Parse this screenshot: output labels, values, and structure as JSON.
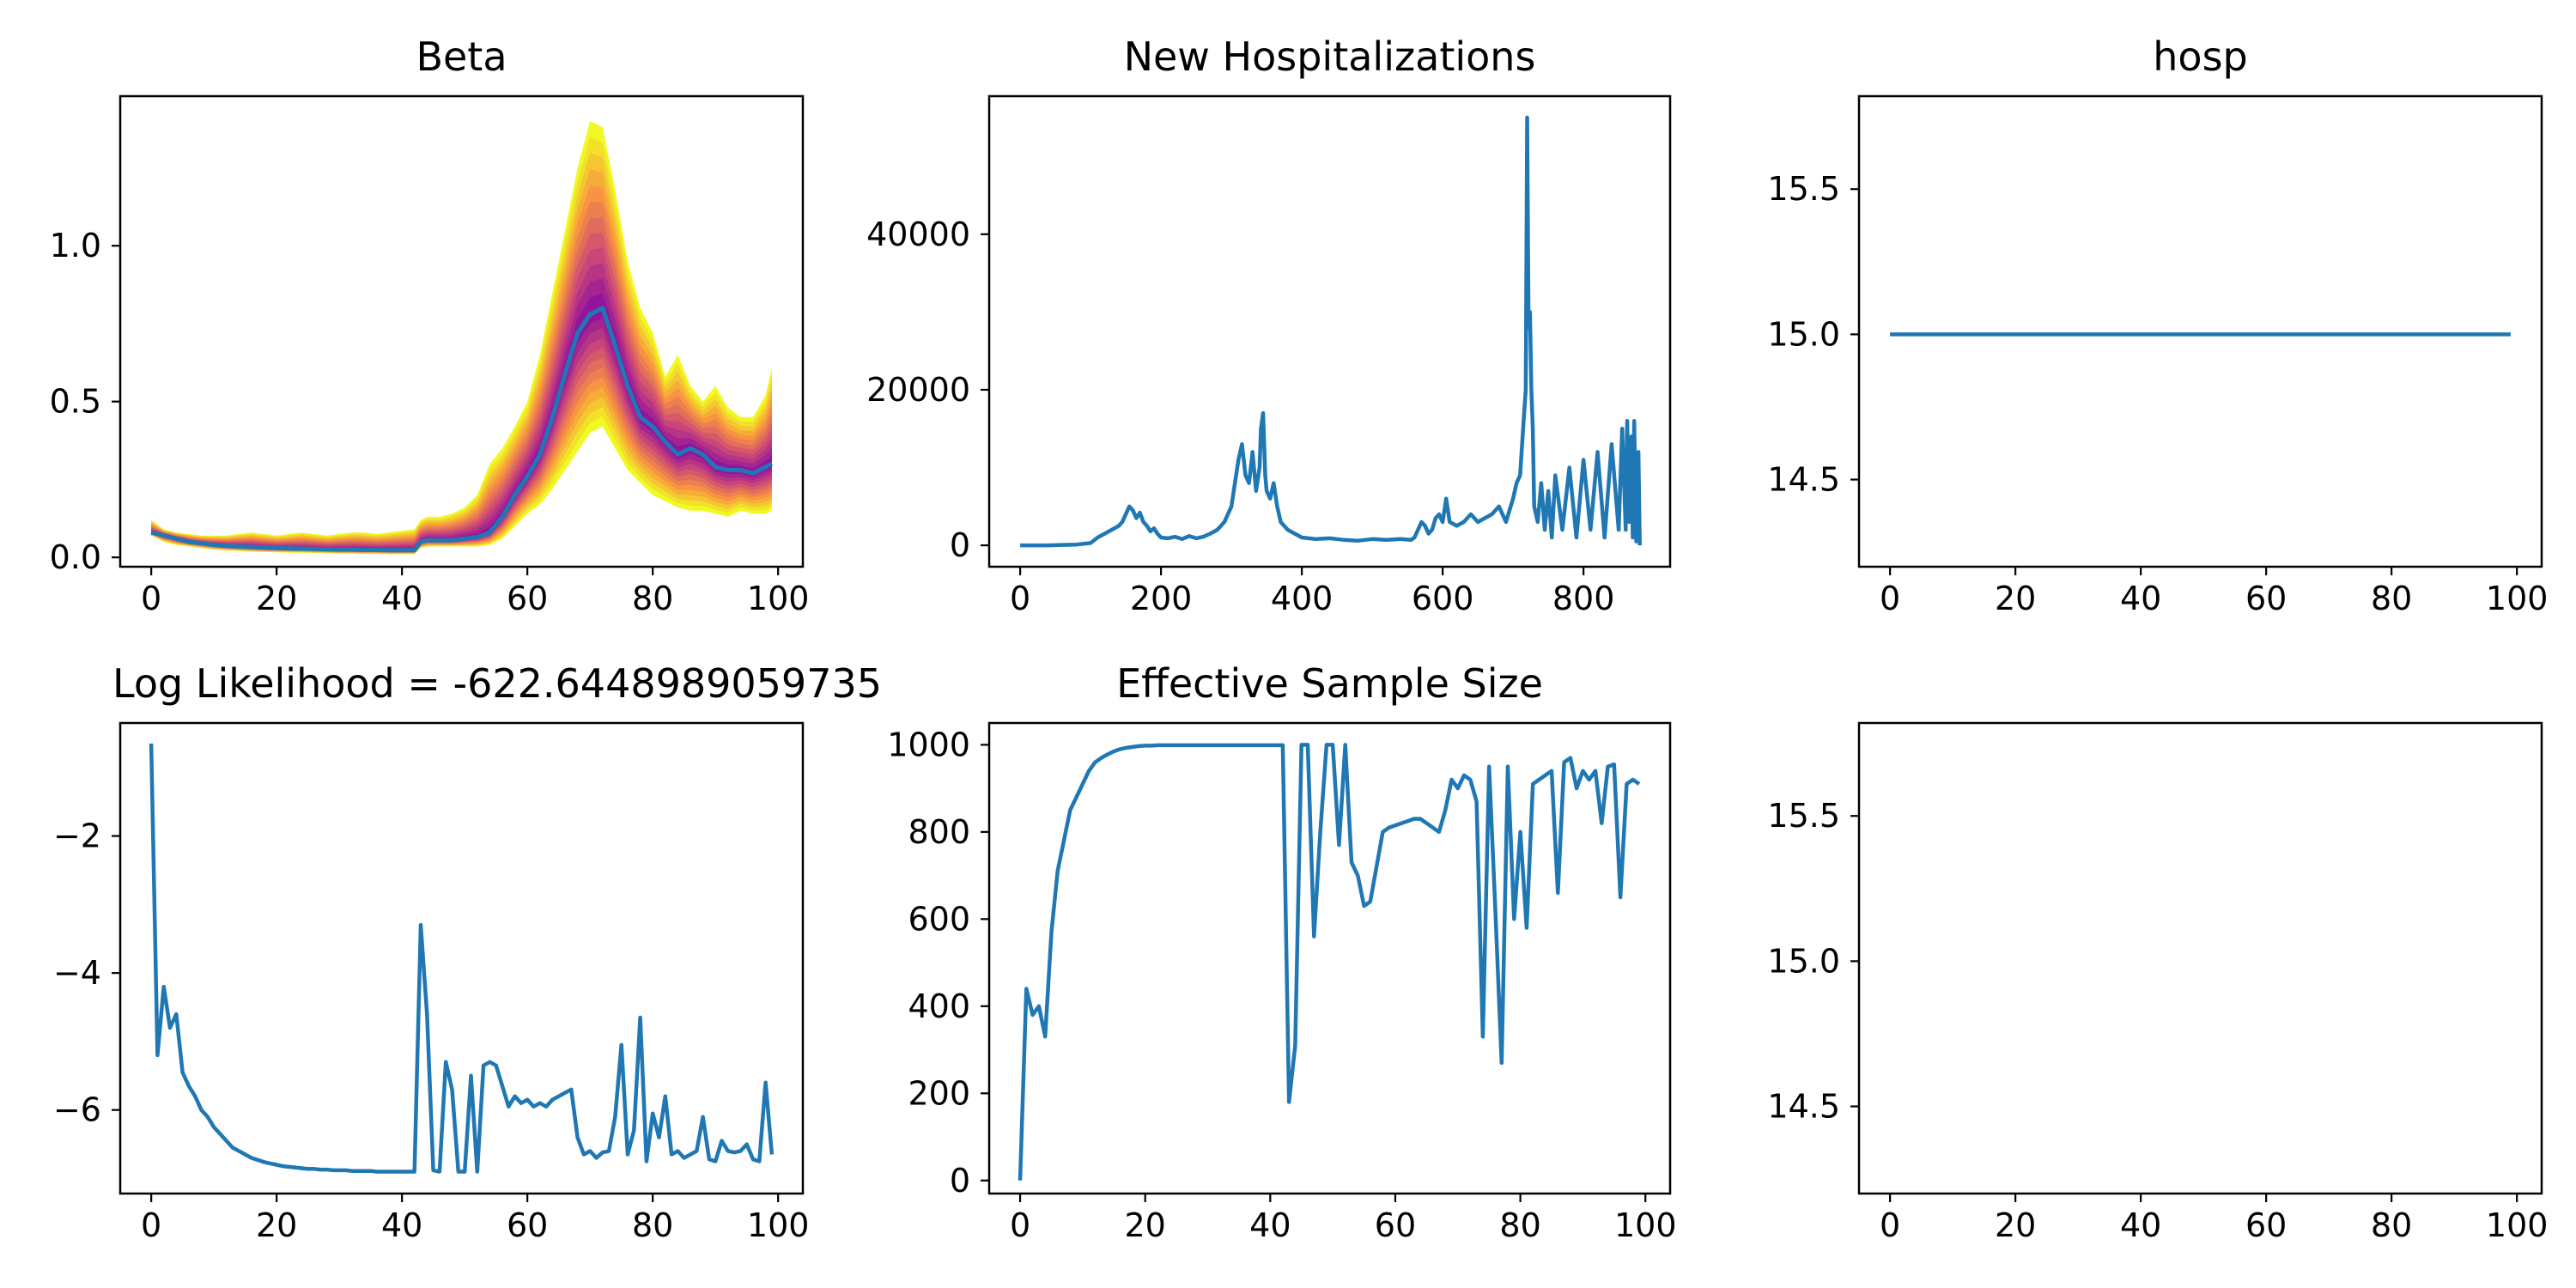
{
  "colors": {
    "line": "#1f77b4",
    "band_outer": "#f0f921",
    "band_mid": "#f89540",
    "band_inner": "#cc4778",
    "band_core": "#7e03a8",
    "frame": "#000000"
  },
  "chart_data": [
    {
      "id": "beta",
      "type": "line",
      "title": "Beta",
      "xlabel": "",
      "ylabel": "",
      "xlim": [
        -4.95,
        103.95
      ],
      "ylim": [
        -0.03,
        1.48
      ],
      "xticks": [
        0,
        20,
        40,
        60,
        80,
        100
      ],
      "xtick_labels": [
        "0",
        "20",
        "40",
        "60",
        "80",
        "100"
      ],
      "yticks": [
        0.0,
        0.5,
        1.0
      ],
      "ytick_labels": [
        "0.0",
        "0.5",
        "1.0"
      ],
      "grid": false,
      "has_band": true,
      "band_colormap": "plasma",
      "x": [
        0,
        2,
        4,
        6,
        8,
        10,
        12,
        14,
        16,
        18,
        20,
        22,
        24,
        26,
        28,
        30,
        32,
        34,
        36,
        38,
        40,
        42,
        43,
        44,
        46,
        48,
        50,
        52,
        54,
        56,
        58,
        60,
        62,
        64,
        66,
        68,
        70,
        72,
        74,
        76,
        78,
        80,
        82,
        84,
        86,
        88,
        90,
        92,
        94,
        96,
        98,
        99
      ],
      "median": [
        0.08,
        0.07,
        0.06,
        0.05,
        0.045,
        0.04,
        0.037,
        0.035,
        0.033,
        0.031,
        0.03,
        0.029,
        0.028,
        0.027,
        0.026,
        0.025,
        0.025,
        0.024,
        0.024,
        0.023,
        0.023,
        0.023,
        0.05,
        0.055,
        0.055,
        0.055,
        0.06,
        0.065,
        0.08,
        0.13,
        0.2,
        0.26,
        0.33,
        0.45,
        0.59,
        0.72,
        0.78,
        0.8,
        0.68,
        0.55,
        0.45,
        0.42,
        0.37,
        0.33,
        0.35,
        0.33,
        0.29,
        0.28,
        0.28,
        0.27,
        0.29,
        0.3
      ],
      "band_upper": [
        0.12,
        0.09,
        0.08,
        0.075,
        0.07,
        0.07,
        0.07,
        0.075,
        0.08,
        0.075,
        0.07,
        0.075,
        0.08,
        0.075,
        0.07,
        0.075,
        0.08,
        0.08,
        0.075,
        0.08,
        0.085,
        0.09,
        0.12,
        0.13,
        0.13,
        0.14,
        0.16,
        0.2,
        0.3,
        0.35,
        0.42,
        0.5,
        0.65,
        0.85,
        1.05,
        1.25,
        1.4,
        1.38,
        1.18,
        0.95,
        0.8,
        0.72,
        0.58,
        0.65,
        0.55,
        0.5,
        0.55,
        0.48,
        0.45,
        0.45,
        0.52,
        0.61
      ],
      "band_lower": [
        0.07,
        0.05,
        0.04,
        0.035,
        0.03,
        0.025,
        0.022,
        0.02,
        0.018,
        0.017,
        0.016,
        0.015,
        0.015,
        0.014,
        0.013,
        0.012,
        0.012,
        0.011,
        0.011,
        0.01,
        0.01,
        0.01,
        0.03,
        0.035,
        0.035,
        0.035,
        0.035,
        0.035,
        0.04,
        0.06,
        0.1,
        0.14,
        0.17,
        0.22,
        0.28,
        0.34,
        0.4,
        0.42,
        0.35,
        0.28,
        0.24,
        0.2,
        0.18,
        0.16,
        0.15,
        0.15,
        0.14,
        0.13,
        0.15,
        0.14,
        0.14,
        0.15
      ]
    },
    {
      "id": "new_hosp",
      "type": "line",
      "title": "New Hospitalizations",
      "xlabel": "",
      "ylabel": "",
      "xlim": [
        -44,
        923
      ],
      "ylim": [
        -2750,
        57750
      ],
      "xticks": [
        0,
        200,
        400,
        600,
        800
      ],
      "xtick_labels": [
        "0",
        "200",
        "400",
        "600",
        "800"
      ],
      "yticks": [
        0,
        20000,
        40000
      ],
      "ytick_labels": [
        "0",
        "20000",
        "40000"
      ],
      "grid": false,
      "has_band": false,
      "x": [
        0,
        20,
        40,
        60,
        80,
        100,
        110,
        120,
        130,
        140,
        145,
        150,
        155,
        160,
        165,
        170,
        175,
        180,
        185,
        190,
        195,
        200,
        210,
        220,
        230,
        240,
        250,
        260,
        270,
        280,
        290,
        300,
        305,
        310,
        315,
        320,
        325,
        330,
        335,
        340,
        342,
        345,
        348,
        350,
        355,
        360,
        365,
        370,
        380,
        390,
        400,
        420,
        440,
        460,
        480,
        500,
        520,
        540,
        555,
        560,
        565,
        570,
        575,
        580,
        585,
        590,
        595,
        600,
        605,
        610,
        620,
        630,
        640,
        650,
        660,
        670,
        680,
        690,
        700,
        705,
        710,
        715,
        718,
        720,
        722,
        724,
        726,
        728,
        730,
        735,
        740,
        745,
        750,
        755,
        760,
        770,
        780,
        790,
        800,
        810,
        820,
        830,
        840,
        850,
        855,
        860,
        862,
        865,
        868,
        870,
        872,
        875,
        878,
        880
      ],
      "values": [
        0,
        0,
        0,
        50,
        100,
        300,
        1000,
        1500,
        2000,
        2500,
        3000,
        4000,
        5000,
        4500,
        3500,
        4200,
        3000,
        2500,
        1800,
        2200,
        1500,
        1000,
        900,
        1100,
        800,
        1200,
        900,
        1100,
        1500,
        2000,
        3000,
        5000,
        8000,
        11000,
        13000,
        9000,
        8000,
        12000,
        7000,
        10000,
        15000,
        17000,
        9000,
        7000,
        6000,
        8000,
        5000,
        3000,
        2000,
        1500,
        1000,
        800,
        900,
        700,
        600,
        800,
        700,
        800,
        700,
        1000,
        2000,
        3000,
        2500,
        1500,
        2000,
        3500,
        4000,
        3000,
        6000,
        3000,
        2500,
        3000,
        4000,
        3000,
        3500,
        4000,
        5000,
        3000,
        6000,
        8000,
        9000,
        16000,
        20000,
        55000,
        28000,
        30000,
        20000,
        15000,
        5000,
        3000,
        8000,
        2000,
        7000,
        1000,
        9000,
        2000,
        10000,
        1000,
        11000,
        2000,
        12000,
        1000,
        13000,
        2000,
        15000,
        2000,
        16000,
        3000,
        14000,
        1000,
        16000,
        500,
        12000,
        0
      ]
    },
    {
      "id": "hosp_top",
      "type": "line",
      "title": "hosp",
      "xlabel": "",
      "ylabel": "",
      "xlim": [
        -4.95,
        103.95
      ],
      "ylim": [
        14.2,
        15.82
      ],
      "xticks": [
        0,
        20,
        40,
        60,
        80,
        100
      ],
      "xtick_labels": [
        "0",
        "20",
        "40",
        "60",
        "80",
        "100"
      ],
      "yticks": [
        14.5,
        15.0,
        15.5
      ],
      "ytick_labels": [
        "14.5",
        "15.0",
        "15.5"
      ],
      "grid": false,
      "has_band": false,
      "x": [
        0,
        99
      ],
      "values": [
        15.0,
        15.0
      ]
    },
    {
      "id": "loglik",
      "type": "line",
      "title": "Log Likelihood = -622.6448989059735",
      "xlabel": "",
      "ylabel": "",
      "xlim": [
        -4.95,
        103.95
      ],
      "ylim": [
        -7.22,
        -0.35
      ],
      "xticks": [
        0,
        20,
        40,
        60,
        80,
        100
      ],
      "xtick_labels": [
        "0",
        "20",
        "40",
        "60",
        "80",
        "100"
      ],
      "yticks": [
        -6,
        -4,
        -2
      ],
      "ytick_labels": [
        "−6",
        "−4",
        "−2"
      ],
      "grid": false,
      "has_band": false,
      "x": [
        0,
        1,
        2,
        3,
        4,
        5,
        6,
        7,
        8,
        9,
        10,
        11,
        12,
        13,
        14,
        15,
        16,
        17,
        18,
        19,
        20,
        21,
        22,
        23,
        24,
        25,
        26,
        27,
        28,
        29,
        30,
        31,
        32,
        33,
        34,
        35,
        36,
        37,
        38,
        39,
        40,
        41,
        42,
        43,
        44,
        45,
        46,
        47,
        48,
        49,
        50,
        51,
        52,
        53,
        54,
        55,
        56,
        57,
        58,
        59,
        60,
        61,
        62,
        63,
        64,
        65,
        66,
        67,
        68,
        69,
        70,
        71,
        72,
        73,
        74,
        75,
        76,
        77,
        78,
        79,
        80,
        81,
        82,
        83,
        84,
        85,
        86,
        87,
        88,
        89,
        90,
        91,
        92,
        93,
        94,
        95,
        96,
        97,
        98,
        99
      ],
      "values": [
        -0.65,
        -5.2,
        -4.2,
        -4.8,
        -4.6,
        -5.45,
        -5.65,
        -5.8,
        -6.0,
        -6.1,
        -6.25,
        -6.35,
        -6.45,
        -6.55,
        -6.6,
        -6.65,
        -6.7,
        -6.73,
        -6.76,
        -6.78,
        -6.8,
        -6.82,
        -6.83,
        -6.84,
        -6.85,
        -6.86,
        -6.86,
        -6.87,
        -6.87,
        -6.88,
        -6.88,
        -6.88,
        -6.89,
        -6.89,
        -6.89,
        -6.89,
        -6.9,
        -6.9,
        -6.9,
        -6.9,
        -6.9,
        -6.9,
        -6.9,
        -3.3,
        -4.6,
        -6.88,
        -6.9,
        -5.3,
        -5.7,
        -6.9,
        -6.9,
        -5.5,
        -6.9,
        -5.35,
        -5.3,
        -5.35,
        -5.65,
        -5.95,
        -5.8,
        -5.9,
        -5.85,
        -5.95,
        -5.9,
        -5.95,
        -5.85,
        -5.8,
        -5.75,
        -5.7,
        -6.4,
        -6.65,
        -6.6,
        -6.7,
        -6.62,
        -6.6,
        -6.1,
        -5.05,
        -6.65,
        -6.3,
        -4.65,
        -6.75,
        -6.05,
        -6.4,
        -5.8,
        -6.65,
        -6.6,
        -6.7,
        -6.65,
        -6.6,
        -6.1,
        -6.72,
        -6.75,
        -6.45,
        -6.6,
        -6.62,
        -6.6,
        -6.5,
        -6.72,
        -6.75,
        -5.6,
        -6.65
      ]
    },
    {
      "id": "ess",
      "type": "line",
      "title": "Effective Sample Size",
      "xlabel": "",
      "ylabel": "",
      "xlim": [
        -4.95,
        103.95
      ],
      "ylim": [
        -30,
        1050
      ],
      "xticks": [
        0,
        20,
        40,
        60,
        80,
        100
      ],
      "xtick_labels": [
        "0",
        "20",
        "40",
        "60",
        "80",
        "100"
      ],
      "yticks": [
        0,
        200,
        400,
        600,
        800,
        1000
      ],
      "ytick_labels": [
        "0",
        "200",
        "400",
        "600",
        "800",
        "1000"
      ],
      "grid": false,
      "has_band": false,
      "x": [
        0,
        1,
        2,
        3,
        4,
        5,
        6,
        7,
        8,
        9,
        10,
        11,
        12,
        13,
        14,
        15,
        16,
        17,
        18,
        19,
        20,
        21,
        22,
        23,
        24,
        25,
        26,
        27,
        28,
        29,
        30,
        31,
        32,
        33,
        34,
        35,
        36,
        37,
        38,
        39,
        40,
        41,
        42,
        43,
        44,
        45,
        46,
        47,
        48,
        49,
        50,
        51,
        52,
        53,
        54,
        55,
        56,
        57,
        58,
        59,
        60,
        61,
        62,
        63,
        64,
        65,
        66,
        67,
        68,
        69,
        70,
        71,
        72,
        73,
        74,
        75,
        76,
        77,
        78,
        79,
        80,
        81,
        82,
        83,
        84,
        85,
        86,
        87,
        88,
        89,
        90,
        91,
        92,
        93,
        94,
        95,
        96,
        97,
        98,
        99
      ],
      "values": [
        0,
        440,
        380,
        400,
        330,
        570,
        710,
        780,
        850,
        880,
        910,
        940,
        960,
        970,
        978,
        985,
        990,
        993,
        995,
        997,
        998,
        998,
        999,
        999,
        999,
        999,
        999,
        999,
        999,
        999,
        999,
        999,
        999,
        999,
        999,
        999,
        999,
        999,
        999,
        999,
        999,
        999,
        999,
        180,
        310,
        1000,
        1000,
        560,
        800,
        1000,
        1000,
        770,
        1000,
        730,
        700,
        630,
        640,
        720,
        800,
        810,
        815,
        820,
        825,
        830,
        830,
        820,
        810,
        800,
        850,
        920,
        900,
        930,
        920,
        870,
        330,
        950,
        620,
        270,
        950,
        600,
        800,
        580,
        910,
        920,
        930,
        940,
        660,
        960,
        970,
        900,
        940,
        920,
        940,
        820,
        950,
        955,
        650,
        910,
        920,
        910
      ]
    },
    {
      "id": "hosp_bottom",
      "type": "line",
      "title": "",
      "xlabel": "",
      "ylabel": "",
      "xlim": [
        -4.95,
        103.95
      ],
      "ylim": [
        14.2,
        15.82
      ],
      "xticks": [
        0,
        20,
        40,
        60,
        80,
        100
      ],
      "xtick_labels": [
        "0",
        "20",
        "40",
        "60",
        "80",
        "100"
      ],
      "yticks": [
        14.5,
        15.0,
        15.5
      ],
      "ytick_labels": [
        "14.5",
        "15.0",
        "15.5"
      ],
      "grid": false,
      "has_band": false,
      "x": [],
      "values": []
    }
  ]
}
